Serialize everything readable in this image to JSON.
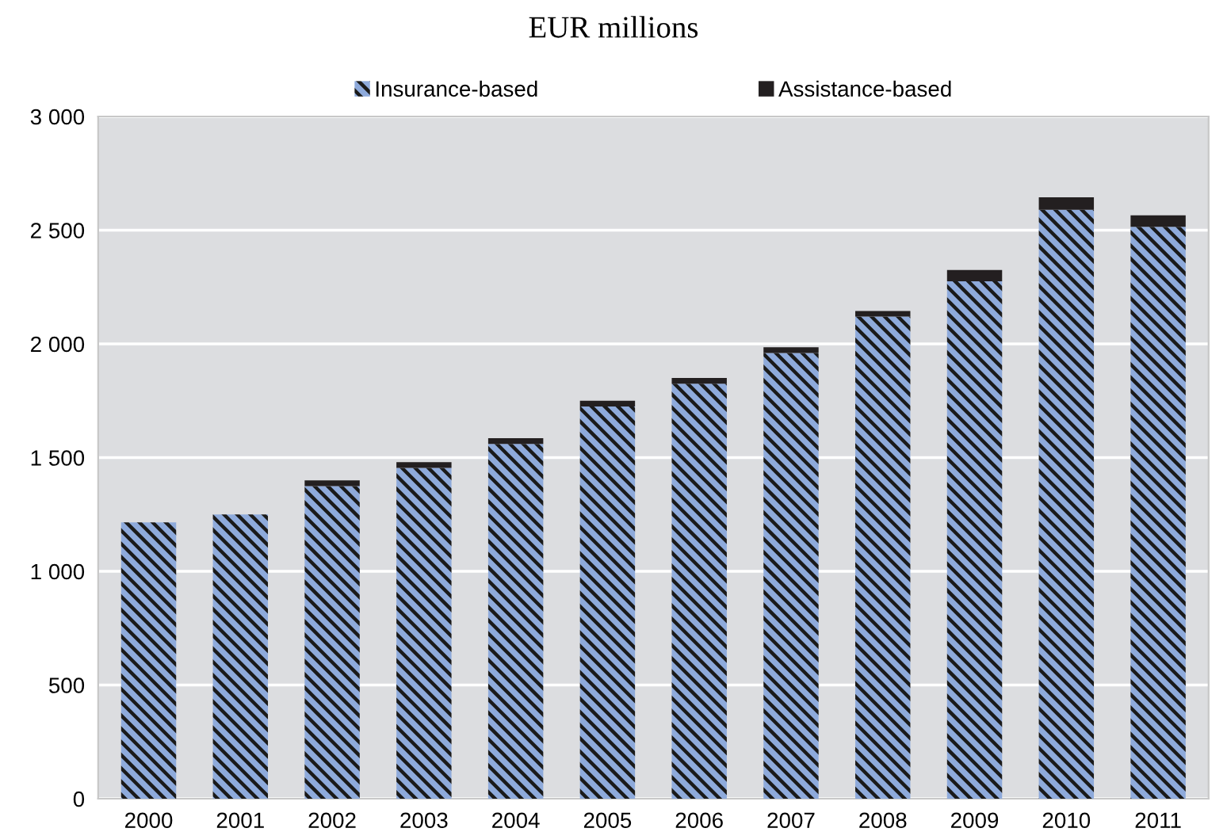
{
  "chart_data": {
    "type": "bar",
    "title": "EUR millions",
    "stacked": true,
    "legend": "top",
    "grid": "y",
    "categories": [
      "2000",
      "2001",
      "2002",
      "2003",
      "2004",
      "2005",
      "2006",
      "2007",
      "2008",
      "2009",
      "2010",
      "2011"
    ],
    "series": [
      {
        "name": "Insurance-based",
        "color": "#8eaadb",
        "values": [
          1215,
          1250,
          1375,
          1455,
          1560,
          1725,
          1825,
          1960,
          2120,
          2275,
          2590,
          2515
        ]
      },
      {
        "name": "Assistance-based",
        "color": "#231f20",
        "values": [
          0,
          0,
          25,
          25,
          25,
          25,
          25,
          25,
          25,
          50,
          55,
          50
        ]
      }
    ],
    "ylim": [
      0,
      3000
    ],
    "yticks": [
      0,
      500,
      {
        "value": 1000,
        "label": "1 000"
      },
      {
        "value": 1500,
        "label": "1 500"
      },
      {
        "value": 2000,
        "label": "2 000"
      },
      {
        "value": 2500,
        "label": "2 500"
      },
      {
        "value": 3000,
        "label": "3 000"
      }
    ]
  }
}
